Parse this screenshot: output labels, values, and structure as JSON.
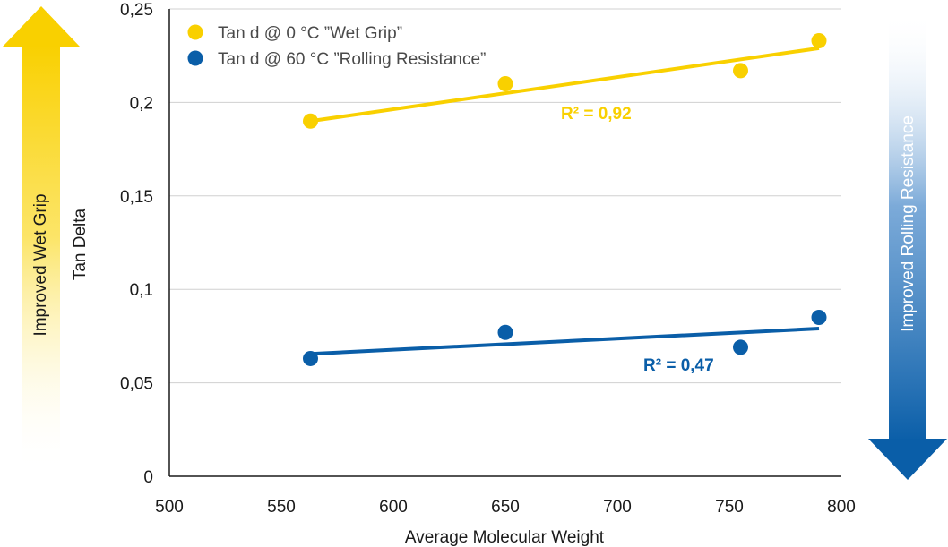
{
  "chart_data": {
    "type": "scatter",
    "xlabel": "Average Molecular Weight",
    "ylabel": "Tan Delta",
    "xlim": [
      500,
      800
    ],
    "ylim": [
      0,
      0.25
    ],
    "x_ticks": [
      500,
      550,
      600,
      650,
      700,
      750,
      800
    ],
    "y_ticks": [
      0,
      0.05,
      0.1,
      0.15,
      0.2,
      0.25
    ],
    "x_tick_labels": [
      "500",
      "550",
      "600",
      "650",
      "700",
      "750",
      "800"
    ],
    "y_tick_labels": [
      "0",
      "0,05",
      "0,1",
      "0,15",
      "0,2",
      "0,25"
    ],
    "grid": "horizontal",
    "legend_position": "top-left",
    "series": [
      {
        "name": "Tan d @ 0 °C ”Wet Grip”",
        "color": "#f9d000",
        "points": [
          {
            "x": 563,
            "y": 0.19
          },
          {
            "x": 650,
            "y": 0.21
          },
          {
            "x": 755,
            "y": 0.217
          },
          {
            "x": 790,
            "y": 0.233
          }
        ],
        "trendline": {
          "x0": 563,
          "y0": 0.19,
          "x1": 790,
          "y1": 0.229
        },
        "r2_label": "R² = 0,92"
      },
      {
        "name": "Tan d @ 60 °C ”Rolling Resistance”",
        "color": "#0a5ea8",
        "points": [
          {
            "x": 563,
            "y": 0.063
          },
          {
            "x": 650,
            "y": 0.077
          },
          {
            "x": 755,
            "y": 0.069
          },
          {
            "x": 790,
            "y": 0.085
          }
        ],
        "trendline": {
          "x0": 563,
          "y0": 0.0655,
          "x1": 790,
          "y1": 0.079
        },
        "r2_label": "R² = 0,47"
      }
    ],
    "side_arrows": {
      "left": {
        "label": "Improved Wet Grip",
        "direction": "up",
        "color": "#f9d000"
      },
      "right": {
        "label": "Improved Rolling Resistance",
        "direction": "down",
        "color": "#0a5ea8"
      }
    }
  }
}
